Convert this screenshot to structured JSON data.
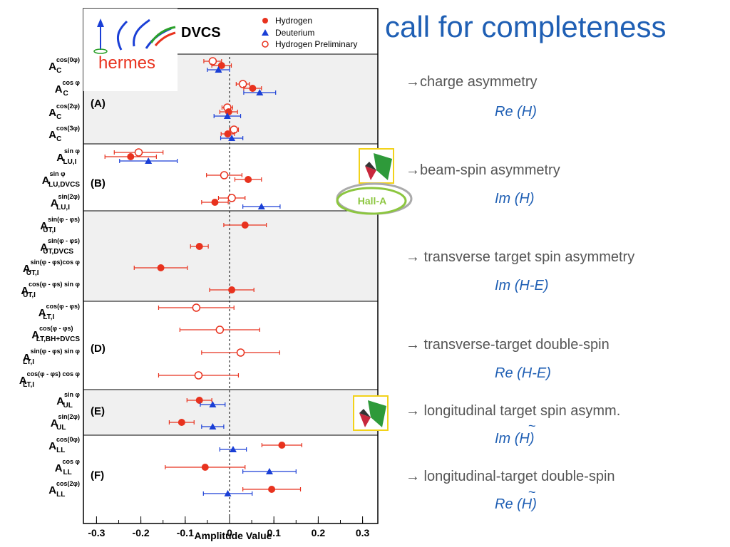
{
  "slide": {
    "title": "call for completeness",
    "items": [
      {
        "text": "→charge asymmetry",
        "sub": "Re (H)"
      },
      {
        "text": "→beam-spin asymmetry",
        "sub": "Im (H)"
      },
      {
        "text": "→ transverse target spin asymmetry",
        "sub": "Im (H-E)"
      },
      {
        "text": "→ transverse-target double-spin",
        "sub": "Re (H-E)"
      },
      {
        "text": "→ longitudinal target spin asymm.",
        "sub": "Im (H)",
        "tilde": "~"
      },
      {
        "text": "→ longitudinal-target double-spin",
        "sub": "Re (H)",
        "tilde": "~"
      }
    ],
    "hall_label": "Hall-A"
  },
  "chart_data": {
    "type": "scatter",
    "xlabel": "Amplitude Value",
    "xlim": [
      -0.35,
      0.33
    ],
    "xticks": [
      "-0.3",
      "-0.2",
      "-0.1",
      "0",
      "0.1",
      "0.2",
      "0.3"
    ],
    "xtick_values": [
      -0.3,
      -0.2,
      -0.1,
      0,
      0.1,
      0.2,
      0.3
    ],
    "logo_text": "hermes",
    "process_label": "DVCS",
    "legend": [
      {
        "name": "Hydrogen",
        "marker": "filled-circle",
        "color": "#e8321e"
      },
      {
        "name": "Deuterium",
        "marker": "triangle",
        "color": "#1a3fd6"
      },
      {
        "name": "Hydrogen Preliminary",
        "marker": "open-circle",
        "color": "#e8321e"
      }
    ],
    "groups": [
      {
        "label": "(A)",
        "rows": [
          {
            "main": "A",
            "sub": "C",
            "sup": "cos(0φ)",
            "H": [
              -0.018,
              0.022
            ],
            "D": [
              -0.025,
              0.025
            ],
            "P": [
              -0.038,
              0.02
            ]
          },
          {
            "main": "A",
            "sub": "C",
            "sup": "cos φ",
            "H": [
              0.052,
              0.02
            ],
            "D": [
              0.068,
              0.036
            ],
            "P": [
              0.03,
              0.015
            ]
          },
          {
            "main": "A",
            "sub": "C",
            "sup": "cos(2φ)",
            "H": [
              -0.002,
              0.02
            ],
            "D": [
              -0.005,
              0.03
            ],
            "P": [
              -0.005,
              0.012
            ]
          },
          {
            "main": "A",
            "sub": "C",
            "sup": "cos(3φ)",
            "H": [
              -0.004,
              0.015
            ],
            "D": [
              0.005,
              0.025
            ],
            "P": [
              0.01,
              0.01
            ]
          }
        ]
      },
      {
        "label": "(B)",
        "rows": [
          {
            "main": "A",
            "sub": "LU,I",
            "sup": "sin φ",
            "H": [
              -0.223,
              0.058
            ],
            "D": [
              -0.183,
              0.065
            ],
            "P": [
              -0.205,
              0.055
            ]
          },
          {
            "main": "A",
            "sub": "LU,DVCS",
            "sup": "sin φ",
            "H": [
              0.042,
              0.03
            ],
            "D": [
              null,
              null
            ],
            "P": [
              -0.012,
              0.04
            ]
          },
          {
            "main": "A",
            "sub": "LU,I",
            "sup": "sin(2φ)",
            "H": [
              -0.033,
              0.03
            ],
            "D": [
              0.072,
              0.042
            ],
            "P": [
              0.005,
              0.03
            ]
          }
        ]
      },
      {
        "label": "",
        "rows": [
          {
            "main": "A",
            "sub": "UT,I",
            "sup": "sin(φ - φs)",
            "H": [
              0.035,
              0.048
            ],
            "D": [
              null,
              null
            ],
            "P": [
              null,
              null
            ]
          },
          {
            "main": "A",
            "sub": "UT,DVCS",
            "sup": "sin(φ - φs)",
            "H": [
              -0.068,
              0.02
            ],
            "D": [
              null,
              null
            ],
            "P": [
              null,
              null
            ]
          },
          {
            "main": "A",
            "sub": "UT,I",
            "sup": "sin(φ - φs)cos φ",
            "H": [
              -0.155,
              0.06
            ],
            "D": [
              null,
              null
            ],
            "P": [
              null,
              null
            ]
          },
          {
            "main": "A",
            "sub": "UT,I",
            "sup": "cos(φ - φs) sin φ",
            "H": [
              0.005,
              0.05
            ],
            "D": [
              null,
              null
            ],
            "P": [
              null,
              null
            ]
          }
        ]
      },
      {
        "label": "(D)",
        "rows": [
          {
            "main": "A",
            "sub": "LT,I",
            "sup": "cos(φ - φs)",
            "H": [
              null,
              null
            ],
            "D": [
              null,
              null
            ],
            "P": [
              -0.075,
              0.085
            ]
          },
          {
            "main": "A",
            "sub": "LT,BH+DVCS",
            "sup": "cos(φ - φs)",
            "H": [
              null,
              null
            ],
            "D": [
              null,
              null
            ],
            "P": [
              -0.022,
              0.09
            ]
          },
          {
            "main": "A",
            "sub": "LT,I",
            "sup": "sin(φ - φs) sin φ",
            "H": [
              null,
              null
            ],
            "D": [
              null,
              null
            ],
            "P": [
              0.025,
              0.088
            ]
          },
          {
            "main": "A",
            "sub": "LT,I",
            "sup": "cos(φ - φs) cos φ",
            "H": [
              null,
              null
            ],
            "D": [
              null,
              null
            ],
            "P": [
              -0.07,
              0.09
            ]
          }
        ]
      },
      {
        "label": "(E)",
        "rows": [
          {
            "main": "A",
            "sub": "UL",
            "sup": "sin φ",
            "H": [
              -0.068,
              0.028
            ],
            "D": [
              -0.038,
              0.028
            ],
            "P": [
              null,
              null
            ]
          },
          {
            "main": "A",
            "sub": "UL",
            "sup": "sin(2φ)",
            "H": [
              -0.108,
              0.028
            ],
            "D": [
              -0.038,
              0.025
            ],
            "P": [
              null,
              null
            ]
          }
        ]
      },
      {
        "label": "(F)",
        "rows": [
          {
            "main": "A",
            "sub": "LL",
            "sup": "cos(0φ)",
            "H": [
              0.118,
              0.045
            ],
            "D": [
              0.008,
              0.03
            ],
            "P": [
              null,
              null
            ]
          },
          {
            "main": "A",
            "sub": "LL",
            "sup": "cos φ",
            "H": [
              -0.055,
              0.09
            ],
            "D": [
              0.09,
              0.06
            ],
            "P": [
              null,
              null
            ]
          },
          {
            "main": "A",
            "sub": "LL",
            "sup": "cos(2φ)",
            "H": [
              0.095,
              0.065
            ],
            "D": [
              -0.004,
              0.055
            ],
            "P": [
              null,
              null
            ]
          }
        ]
      }
    ],
    "colors": {
      "hydrogen": "#e8321e",
      "deuterium": "#1a3fd6",
      "shade": "#f0f0f0",
      "title": "#1f5fb4"
    }
  }
}
